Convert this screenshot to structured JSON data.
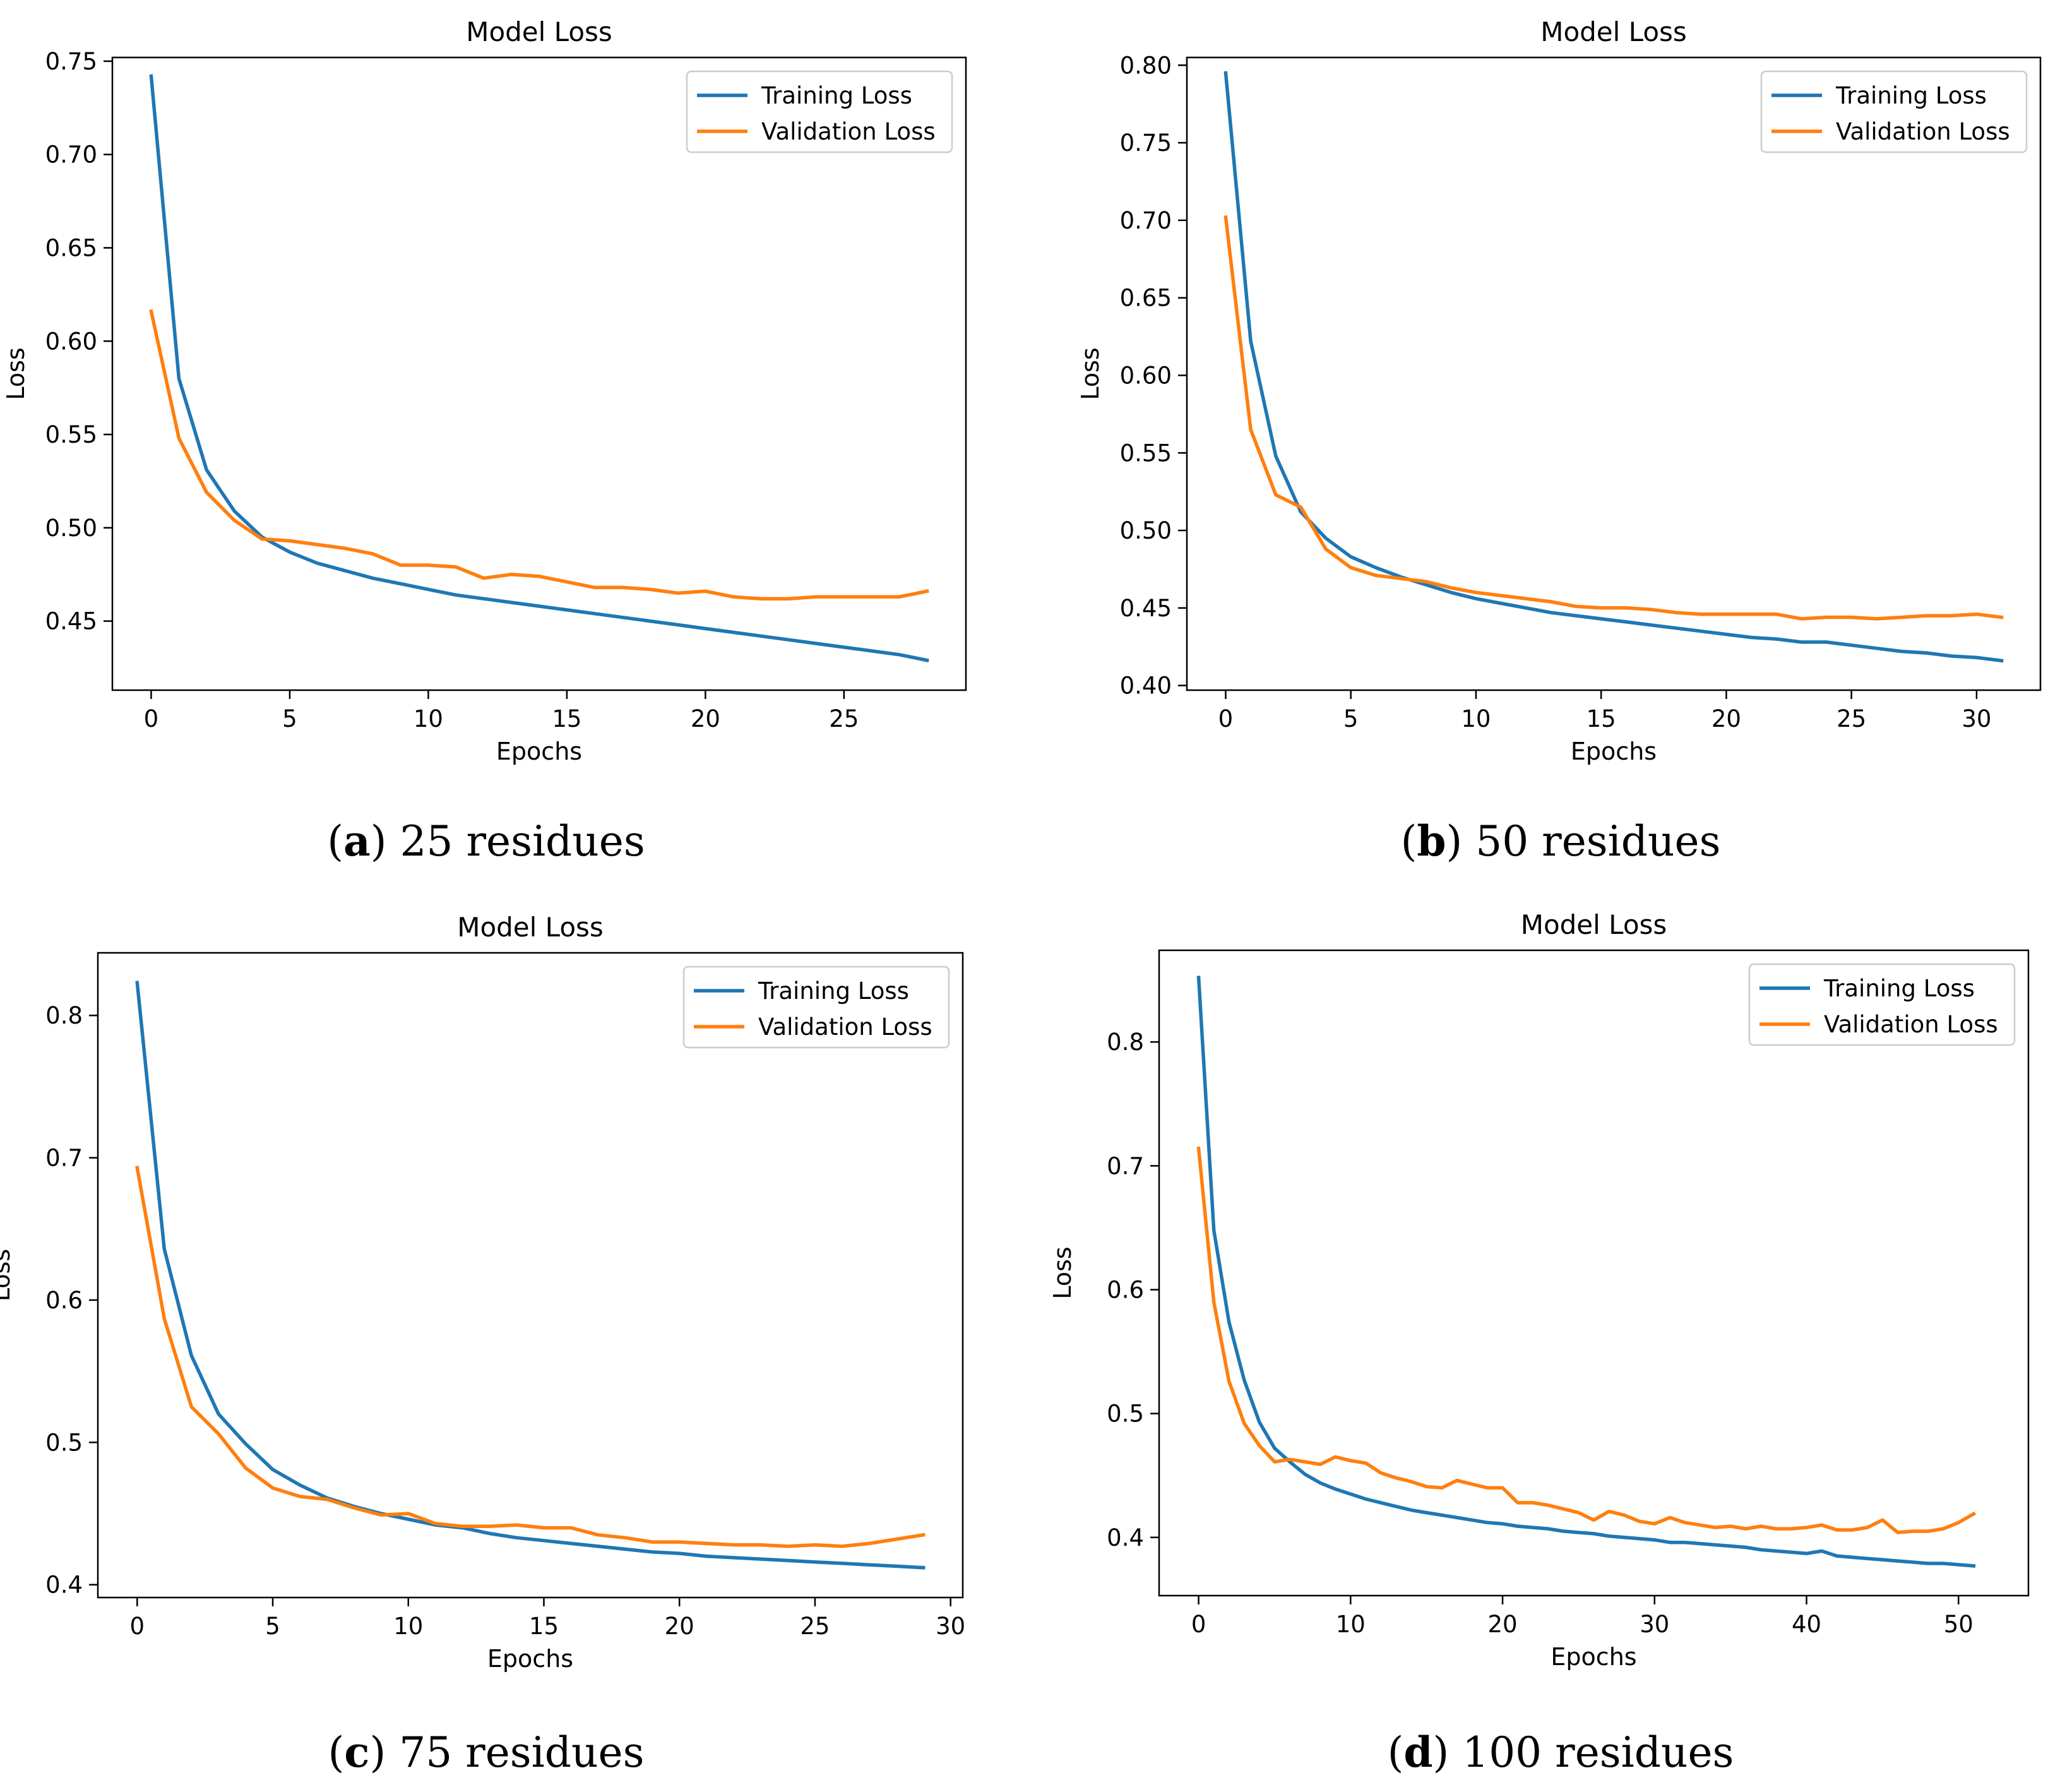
{
  "chart_data": [
    {
      "type": "line",
      "title": "Model Loss",
      "xlabel": "Epochs",
      "ylabel": "Loss",
      "caption_letter": "a",
      "caption_text": "25 residues",
      "xlim": [
        -1.4,
        29.4
      ],
      "ylim": [
        0.413,
        0.752
      ],
      "xticks": [
        0,
        5,
        10,
        15,
        20,
        25
      ],
      "yticks": [
        0.45,
        0.5,
        0.55,
        0.6,
        0.65,
        0.7,
        0.75
      ],
      "ytick_labels": [
        "0.45",
        "0.50",
        "0.55",
        "0.60",
        "0.65",
        "0.70",
        "0.75"
      ],
      "legend": "top-right",
      "series": [
        {
          "name": "Training Loss",
          "color": "#1f77b4",
          "values": [
            0.742,
            0.58,
            0.531,
            0.509,
            0.495,
            0.487,
            0.481,
            0.477,
            0.473,
            0.47,
            0.467,
            0.464,
            0.462,
            0.46,
            0.458,
            0.456,
            0.454,
            0.452,
            0.45,
            0.448,
            0.446,
            0.444,
            0.442,
            0.44,
            0.438,
            0.436,
            0.434,
            0.432,
            0.429
          ]
        },
        {
          "name": "Validation Loss",
          "color": "#ff7f0e",
          "values": [
            0.616,
            0.548,
            0.519,
            0.504,
            0.494,
            0.493,
            0.491,
            0.489,
            0.486,
            0.48,
            0.48,
            0.479,
            0.473,
            0.475,
            0.474,
            0.471,
            0.468,
            0.468,
            0.467,
            0.465,
            0.466,
            0.463,
            0.462,
            0.462,
            0.463,
            0.463,
            0.463,
            0.463,
            0.466
          ]
        }
      ]
    },
    {
      "type": "line",
      "title": "Model Loss",
      "xlabel": "Epochs",
      "ylabel": "Loss",
      "caption_letter": "b",
      "caption_text": "50 residues",
      "xlim": [
        -1.55,
        32.55
      ],
      "ylim": [
        0.397,
        0.805
      ],
      "xticks": [
        0,
        5,
        10,
        15,
        20,
        25,
        30
      ],
      "yticks": [
        0.4,
        0.45,
        0.5,
        0.55,
        0.6,
        0.65,
        0.7,
        0.75,
        0.8
      ],
      "ytick_labels": [
        "0.40",
        "0.45",
        "0.50",
        "0.55",
        "0.60",
        "0.65",
        "0.70",
        "0.75",
        "0.80"
      ],
      "legend": "top-right",
      "series": [
        {
          "name": "Training Loss",
          "color": "#1f77b4",
          "values": [
            0.795,
            0.622,
            0.548,
            0.512,
            0.495,
            0.483,
            0.476,
            0.47,
            0.465,
            0.46,
            0.456,
            0.453,
            0.45,
            0.447,
            0.445,
            0.443,
            0.441,
            0.439,
            0.437,
            0.435,
            0.433,
            0.431,
            0.43,
            0.428,
            0.428,
            0.426,
            0.424,
            0.422,
            0.421,
            0.419,
            0.418,
            0.416
          ]
        },
        {
          "name": "Validation Loss",
          "color": "#ff7f0e",
          "values": [
            0.702,
            0.565,
            0.523,
            0.515,
            0.488,
            0.476,
            0.471,
            0.469,
            0.467,
            0.463,
            0.46,
            0.458,
            0.456,
            0.454,
            0.451,
            0.45,
            0.45,
            0.449,
            0.447,
            0.446,
            0.446,
            0.446,
            0.446,
            0.443,
            0.444,
            0.444,
            0.443,
            0.444,
            0.445,
            0.445,
            0.446,
            0.444
          ]
        }
      ]
    },
    {
      "type": "line",
      "title": "Model Loss",
      "xlabel": "Epochs",
      "ylabel": "Loss",
      "caption_letter": "c",
      "caption_text": "75 residues",
      "xlim": [
        -1.45,
        30.45
      ],
      "ylim": [
        0.391,
        0.844
      ],
      "xticks": [
        0,
        5,
        10,
        15,
        20,
        25,
        30
      ],
      "yticks": [
        0.4,
        0.5,
        0.6,
        0.7,
        0.8
      ],
      "ytick_labels": [
        "0.4",
        "0.5",
        "0.6",
        "0.7",
        "0.8"
      ],
      "legend": "top-right",
      "series": [
        {
          "name": "Training Loss",
          "color": "#1f77b4",
          "values": [
            0.823,
            0.636,
            0.561,
            0.52,
            0.499,
            0.481,
            0.47,
            0.461,
            0.455,
            0.45,
            0.446,
            0.442,
            0.44,
            0.436,
            0.433,
            0.431,
            0.429,
            0.427,
            0.425,
            0.423,
            0.422,
            0.42,
            0.419,
            0.418,
            0.417,
            0.416,
            0.415,
            0.414,
            0.413,
            0.412
          ]
        },
        {
          "name": "Validation Loss",
          "color": "#ff7f0e",
          "values": [
            0.693,
            0.587,
            0.525,
            0.506,
            0.482,
            0.468,
            0.462,
            0.46,
            0.454,
            0.449,
            0.45,
            0.443,
            0.441,
            0.441,
            0.442,
            0.44,
            0.44,
            0.435,
            0.433,
            0.43,
            0.43,
            0.429,
            0.428,
            0.428,
            0.427,
            0.428,
            0.427,
            0.429,
            0.432,
            0.435
          ]
        }
      ]
    },
    {
      "type": "line",
      "title": "Model Loss",
      "xlabel": "Epochs",
      "ylabel": "Loss",
      "caption_letter": "d",
      "caption_text": "100 residues",
      "xlim": [
        -2.6,
        54.6
      ],
      "ylim": [
        0.353,
        0.874
      ],
      "xticks": [
        0,
        10,
        20,
        30,
        40,
        50
      ],
      "yticks": [
        0.4,
        0.5,
        0.6,
        0.7,
        0.8
      ],
      "ytick_labels": [
        "0.4",
        "0.5",
        "0.6",
        "0.7",
        "0.8"
      ],
      "legend": "top-right",
      "series": [
        {
          "name": "Training Loss",
          "color": "#1f77b4",
          "values": [
            0.852,
            0.648,
            0.574,
            0.527,
            0.493,
            0.472,
            0.461,
            0.451,
            0.444,
            0.439,
            0.435,
            0.431,
            0.428,
            0.425,
            0.422,
            0.42,
            0.418,
            0.416,
            0.414,
            0.412,
            0.411,
            0.409,
            0.408,
            0.407,
            0.405,
            0.404,
            0.403,
            0.401,
            0.4,
            0.399,
            0.398,
            0.396,
            0.396,
            0.395,
            0.394,
            0.393,
            0.392,
            0.39,
            0.389,
            0.388,
            0.387,
            0.389,
            0.385,
            0.384,
            0.383,
            0.382,
            0.381,
            0.38,
            0.379,
            0.379,
            0.378,
            0.377
          ]
        },
        {
          "name": "Validation Loss",
          "color": "#ff7f0e",
          "values": [
            0.714,
            0.59,
            0.526,
            0.492,
            0.474,
            0.461,
            0.463,
            0.461,
            0.459,
            0.465,
            0.462,
            0.46,
            0.452,
            0.448,
            0.445,
            0.441,
            0.44,
            0.446,
            0.443,
            0.44,
            0.44,
            0.428,
            0.428,
            0.426,
            0.423,
            0.42,
            0.414,
            0.421,
            0.418,
            0.413,
            0.411,
            0.416,
            0.412,
            0.41,
            0.408,
            0.409,
            0.407,
            0.409,
            0.407,
            0.407,
            0.408,
            0.41,
            0.406,
            0.406,
            0.408,
            0.414,
            0.404,
            0.405,
            0.405,
            0.407,
            0.412,
            0.419
          ]
        }
      ]
    }
  ]
}
